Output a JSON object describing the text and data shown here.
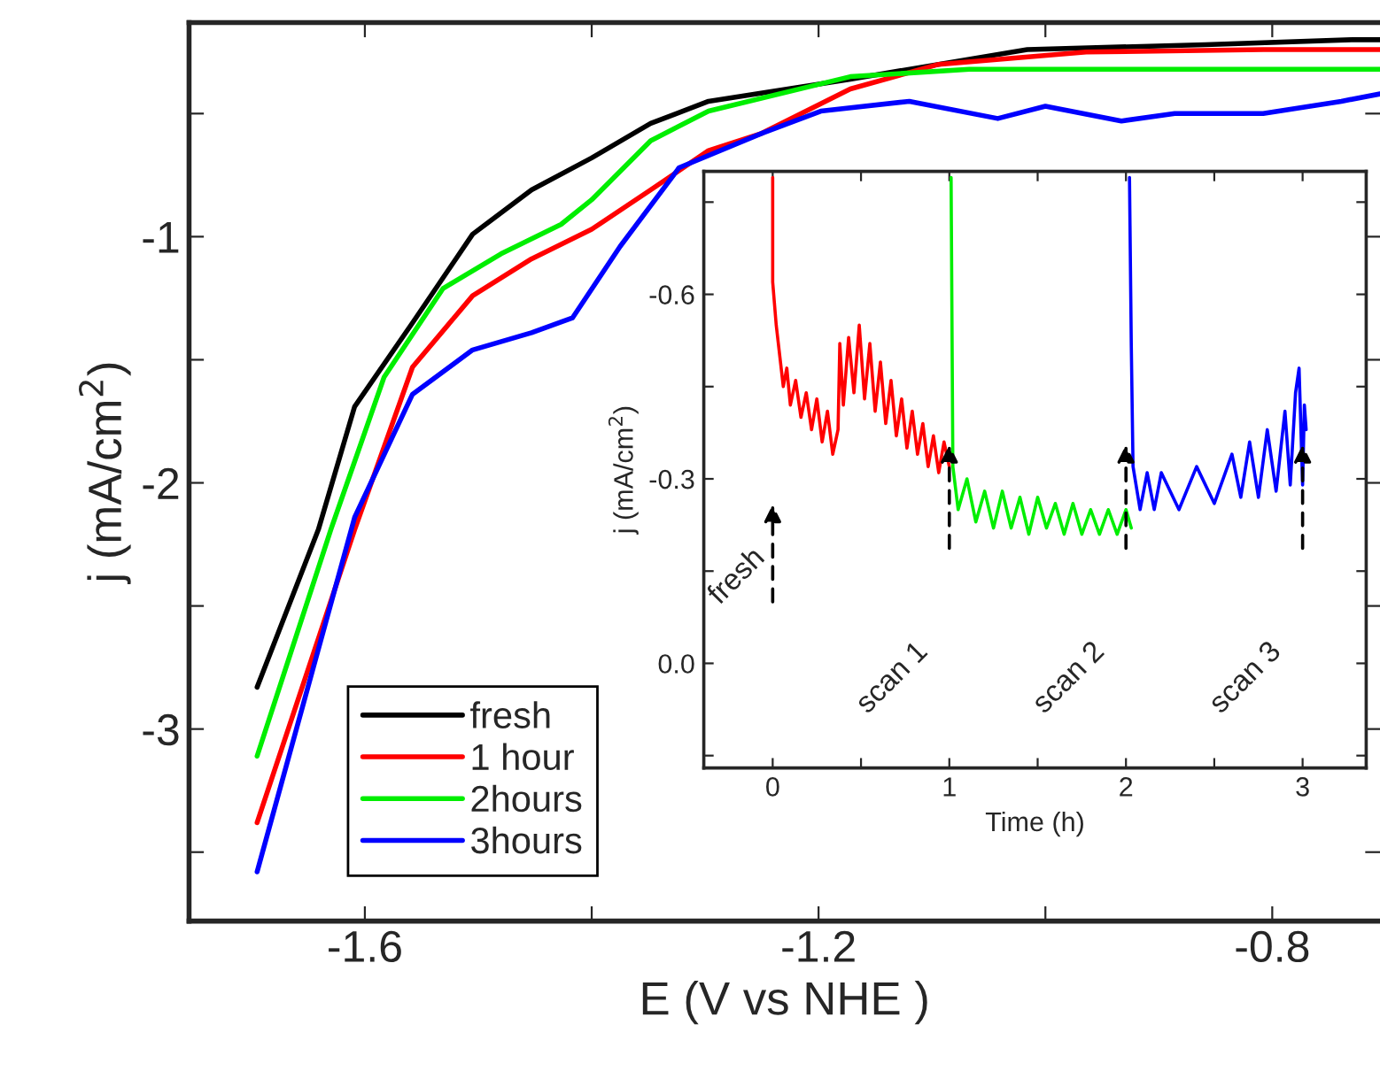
{
  "chart_data": [
    {
      "type": "line",
      "xlabel": "E (V vs NHE )",
      "ylabel": "j (mA/cm$^{2}$)",
      "xlim": [
        -1.755,
        -0.705
      ],
      "ylim": [
        -3.78,
        -0.13
      ],
      "xticks": [
        -1.6,
        {
          "value": -1.4,
          "label": null
        },
        -1.2,
        {
          "value": -1.0,
          "label": null
        },
        -0.8
      ],
      "yticks": [
        {
          "value": -3.5,
          "label": null
        },
        -3,
        {
          "value": -2.5,
          "label": null
        },
        -2,
        {
          "value": -1.5,
          "label": null
        },
        -1,
        {
          "value": -0.5,
          "label": null
        }
      ],
      "legend": "bottom left",
      "series": [
        {
          "name": "fresh",
          "color": "#000000",
          "x": [
            -1.695,
            -1.641,
            -1.609,
            -1.558,
            -1.505,
            -1.453,
            -1.4,
            -1.348,
            -1.297,
            -1.172,
            -1.016,
            -0.859,
            -0.73,
            -0.705
          ],
          "values": [
            -2.83,
            -2.19,
            -1.69,
            -1.35,
            -0.99,
            -0.81,
            -0.68,
            -0.54,
            -0.45,
            -0.36,
            -0.24,
            -0.22,
            -0.2,
            -0.2
          ]
        },
        {
          "name": "1 hour",
          "color": "#ff0000",
          "x": [
            -1.695,
            -1.609,
            -1.558,
            -1.505,
            -1.453,
            -1.4,
            -1.348,
            -1.297,
            -1.25,
            -1.172,
            -1.094,
            -0.964,
            -0.808,
            -0.705
          ],
          "values": [
            -3.38,
            -2.19,
            -1.53,
            -1.24,
            -1.09,
            -0.97,
            -0.81,
            -0.65,
            -0.58,
            -0.4,
            -0.3,
            -0.25,
            -0.24,
            -0.24
          ]
        },
        {
          "name": "2hours",
          "color": "#00ee00",
          "x": [
            -1.695,
            -1.63,
            -1.583,
            -1.531,
            -1.48,
            -1.427,
            -1.4,
            -1.348,
            -1.297,
            -1.172,
            -1.067,
            -0.911,
            -0.705
          ],
          "values": [
            -3.11,
            -2.19,
            -1.57,
            -1.21,
            -1.07,
            -0.95,
            -0.85,
            -0.61,
            -0.49,
            -0.35,
            -0.32,
            -0.32,
            -0.32
          ]
        },
        {
          "name": "3hours",
          "color": "#0000ff",
          "x": [
            -1.695,
            -1.609,
            -1.558,
            -1.505,
            -1.453,
            -1.417,
            -1.375,
            -1.323,
            -1.25,
            -1.198,
            -1.12,
            -1.042,
            -1.0,
            -0.933,
            -0.886,
            -0.808,
            -0.739,
            -0.705
          ],
          "values": [
            -3.58,
            -2.14,
            -1.64,
            -1.46,
            -1.39,
            -1.33,
            -1.04,
            -0.72,
            -0.58,
            -0.49,
            -0.45,
            -0.52,
            -0.47,
            -0.53,
            -0.5,
            -0.5,
            -0.45,
            -0.42
          ]
        }
      ]
    },
    {
      "type": "line",
      "xlabel": "Time (h)",
      "ylabel": "j (mA/cm$^{2}$)",
      "xlim": [
        -0.39,
        3.36
      ],
      "ylim": [
        0.17,
        -0.8
      ],
      "xticks": [
        0,
        {
          "value": 0.5,
          "label": null
        },
        1,
        {
          "value": 1.5,
          "label": null
        },
        2,
        {
          "value": 2.5,
          "label": null
        },
        3
      ],
      "yticks": [
        {
          "value": 0.15,
          "label": null
        },
        {
          "value": 0,
          "label": "0.0"
        },
        {
          "value": -0.15,
          "label": null
        },
        -0.3,
        {
          "value": -0.45,
          "label": null
        },
        -0.6,
        {
          "value": -0.75,
          "label": null
        }
      ],
      "annotations": [
        "fresh",
        "scan 1",
        "scan 2",
        "scan 3"
      ],
      "series": [
        {
          "color": "#ff0000",
          "x": [
            0.0,
            0.0,
            0.02,
            0.04,
            0.06,
            0.08,
            0.1,
            0.13,
            0.16,
            0.19,
            0.22,
            0.25,
            0.28,
            0.31,
            0.34,
            0.37,
            0.38,
            0.4,
            0.43,
            0.46,
            0.49,
            0.52,
            0.55,
            0.58,
            0.61,
            0.64,
            0.67,
            0.7,
            0.73,
            0.76,
            0.79,
            0.82,
            0.85,
            0.88,
            0.91,
            0.94,
            0.97,
            1.0
          ],
          "values": [
            -0.79,
            -0.62,
            -0.55,
            -0.5,
            -0.45,
            -0.48,
            -0.42,
            -0.46,
            -0.4,
            -0.44,
            -0.38,
            -0.43,
            -0.36,
            -0.41,
            -0.34,
            -0.38,
            -0.52,
            -0.42,
            -0.53,
            -0.44,
            -0.55,
            -0.43,
            -0.52,
            -0.41,
            -0.49,
            -0.39,
            -0.46,
            -0.37,
            -0.43,
            -0.35,
            -0.41,
            -0.34,
            -0.39,
            -0.32,
            -0.37,
            -0.31,
            -0.36,
            -0.32
          ]
        },
        {
          "color": "#00ee00",
          "x": [
            1.01,
            1.02,
            1.05,
            1.1,
            1.15,
            1.2,
            1.25,
            1.3,
            1.35,
            1.4,
            1.45,
            1.5,
            1.55,
            1.6,
            1.65,
            1.7,
            1.75,
            1.8,
            1.85,
            1.9,
            1.95,
            2.0,
            2.03
          ],
          "values": [
            -0.79,
            -0.32,
            -0.25,
            -0.3,
            -0.23,
            -0.28,
            -0.22,
            -0.28,
            -0.22,
            -0.27,
            -0.21,
            -0.27,
            -0.22,
            -0.26,
            -0.21,
            -0.26,
            -0.21,
            -0.25,
            -0.21,
            -0.25,
            -0.21,
            -0.25,
            -0.22
          ]
        },
        {
          "color": "#0000ff",
          "x": [
            2.02,
            2.03,
            2.04,
            2.08,
            2.12,
            2.16,
            2.2,
            2.3,
            2.4,
            2.5,
            2.6,
            2.65,
            2.7,
            2.75,
            2.8,
            2.85,
            2.9,
            2.93,
            2.96,
            2.98,
            3.0,
            3.01,
            3.02
          ],
          "values": [
            -0.79,
            -0.52,
            -0.32,
            -0.25,
            -0.31,
            -0.25,
            -0.31,
            -0.25,
            -0.32,
            -0.26,
            -0.34,
            -0.27,
            -0.36,
            -0.27,
            -0.38,
            -0.28,
            -0.41,
            -0.29,
            -0.44,
            -0.48,
            -0.29,
            -0.42,
            -0.38
          ]
        }
      ]
    }
  ]
}
